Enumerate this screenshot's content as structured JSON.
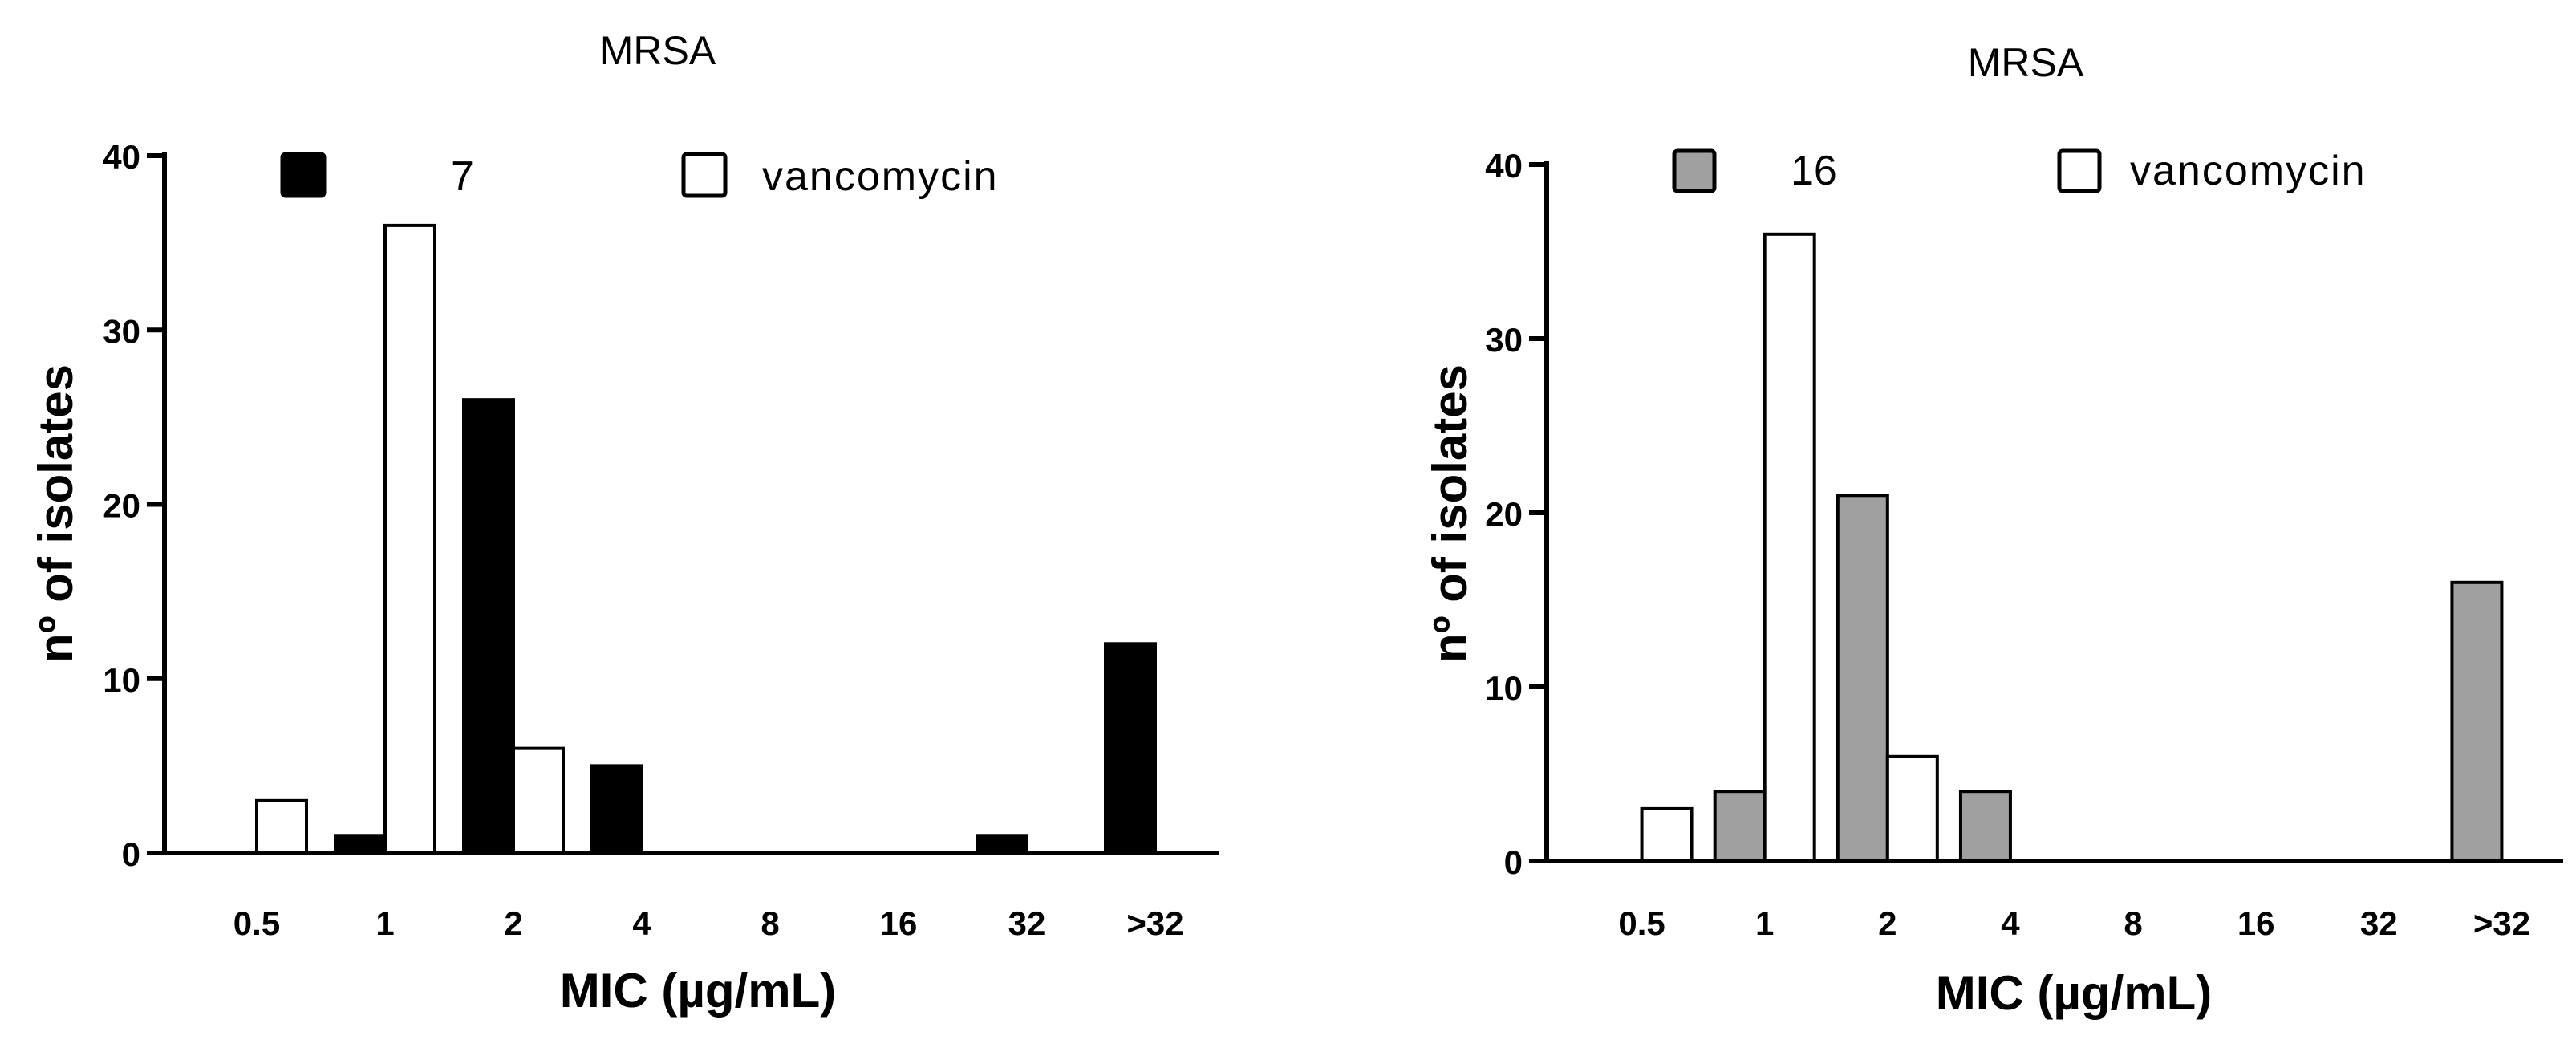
{
  "chart_data": [
    {
      "type": "bar",
      "title": "MRSA",
      "xlabel": "MIC (µg/mL)",
      "ylabel": "nº of isolates",
      "ylim": [
        0,
        40
      ],
      "yticks": [
        0,
        10,
        20,
        30,
        40
      ],
      "categories": [
        "0.5",
        "1",
        "2",
        "4",
        "8",
        "16",
        "32",
        ">32"
      ],
      "legend_position": "top",
      "series": [
        {
          "name": "7",
          "color": "#000000",
          "values": [
            0,
            1,
            26,
            5,
            0,
            0,
            1,
            12
          ]
        },
        {
          "name": "vancomycin",
          "color": "#ffffff",
          "values": [
            3,
            36,
            6,
            0,
            0,
            0,
            0,
            0
          ]
        }
      ]
    },
    {
      "type": "bar",
      "title": "MRSA",
      "xlabel": "MIC (µg/mL)",
      "ylabel": "nº of isolates",
      "ylim": [
        0,
        40
      ],
      "yticks": [
        0,
        10,
        20,
        30,
        40
      ],
      "categories": [
        "0.5",
        "1",
        "2",
        "4",
        "8",
        "16",
        "32",
        ">32"
      ],
      "legend_position": "top",
      "series": [
        {
          "name": "16",
          "color": "#a0a0a0",
          "values": [
            0,
            4,
            21,
            4,
            0,
            0,
            0,
            16
          ]
        },
        {
          "name": "vancomycin",
          "color": "#ffffff",
          "values": [
            3,
            36,
            6,
            0,
            0,
            0,
            0,
            0
          ]
        }
      ]
    }
  ]
}
